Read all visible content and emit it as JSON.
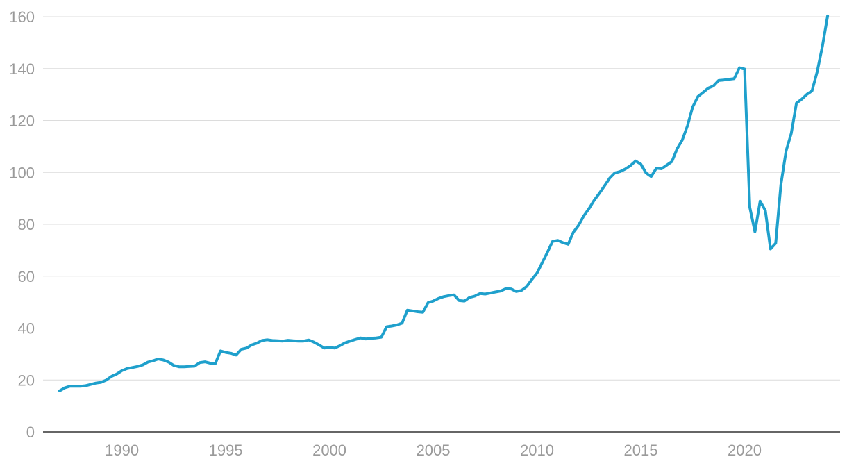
{
  "colors": {
    "line": "#1fa0cc",
    "grid": "#dcdcdc",
    "tick_text": "#9a9a9a",
    "axis": "#333333"
  },
  "chart_data": {
    "type": "line",
    "title": "",
    "xlabel": "",
    "ylabel": "",
    "xlim": [
      1986.2,
      2024.6
    ],
    "ylim": [
      0,
      160
    ],
    "grid": true,
    "legend": "none",
    "x_ticks": [
      1990,
      1995,
      2000,
      2005,
      2010,
      2015,
      2020
    ],
    "x_tick_labels": [
      "1990",
      "1995",
      "2000",
      "2005",
      "2010",
      "2015",
      "2020"
    ],
    "y_ticks": [
      0,
      20,
      40,
      60,
      80,
      100,
      120,
      140,
      160
    ],
    "y_tick_labels": [
      "0",
      "20",
      "40",
      "60",
      "80",
      "100",
      "120",
      "140",
      "160"
    ],
    "series": [
      {
        "x": [
          1987.0,
          1987.25,
          1987.5,
          1987.75,
          1988.0,
          1988.25,
          1988.5,
          1988.75,
          1989.0,
          1989.25,
          1989.5,
          1989.75,
          1990.0,
          1990.25,
          1990.5,
          1990.75,
          1991.0,
          1991.25,
          1991.5,
          1991.75,
          1992.0,
          1992.25,
          1992.5,
          1992.75,
          1993.0,
          1993.25,
          1993.5,
          1993.75,
          1994.0,
          1994.25,
          1994.5,
          1994.75,
          1995.0,
          1995.25,
          1995.5,
          1995.75,
          1996.0,
          1996.25,
          1996.5,
          1996.75,
          1997.0,
          1997.25,
          1997.5,
          1997.75,
          1998.0,
          1998.25,
          1998.5,
          1998.75,
          1999.0,
          1999.25,
          1999.5,
          1999.75,
          2000.0,
          2000.25,
          2000.5,
          2000.75,
          2001.0,
          2001.25,
          2001.5,
          2001.75,
          2002.0,
          2002.25,
          2002.5,
          2002.75,
          2003.0,
          2003.25,
          2003.5,
          2003.75,
          2004.0,
          2004.25,
          2004.5,
          2004.75,
          2005.0,
          2005.25,
          2005.5,
          2005.75,
          2006.0,
          2006.25,
          2006.5,
          2006.75,
          2007.0,
          2007.25,
          2007.5,
          2007.75,
          2008.0,
          2008.25,
          2008.5,
          2008.75,
          2009.0,
          2009.25,
          2009.5,
          2009.75,
          2010.0,
          2010.25,
          2010.5,
          2010.75,
          2011.0,
          2011.25,
          2011.5,
          2011.75,
          2012.0,
          2012.25,
          2012.5,
          2012.75,
          2013.0,
          2013.25,
          2013.5,
          2013.75,
          2014.0,
          2014.25,
          2014.5,
          2014.75,
          2015.0,
          2015.25,
          2015.5,
          2015.75,
          2016.0,
          2016.25,
          2016.5,
          2016.75,
          2017.0,
          2017.25,
          2017.5,
          2017.75,
          2018.0,
          2018.25,
          2018.5,
          2018.75,
          2019.0,
          2019.25,
          2019.5,
          2019.75,
          2020.0,
          2020.25,
          2020.5,
          2020.75,
          2021.0,
          2021.25,
          2021.5,
          2021.75,
          2022.0,
          2022.25,
          2022.5,
          2022.75,
          2023.0,
          2023.25,
          2023.5,
          2023.75,
          2024.0
        ],
        "values": [
          15.8,
          17.0,
          17.6,
          17.6,
          17.6,
          17.8,
          18.3,
          18.8,
          19.1,
          20.0,
          21.4,
          22.3,
          23.6,
          24.4,
          24.8,
          25.2,
          25.8,
          26.9,
          27.4,
          28.1,
          27.7,
          26.9,
          25.6,
          25.1,
          25.1,
          25.2,
          25.3,
          26.7,
          27.0,
          26.5,
          26.3,
          31.2,
          30.6,
          30.3,
          29.6,
          31.8,
          32.3,
          33.5,
          34.2,
          35.2,
          35.5,
          35.2,
          35.1,
          35.0,
          35.3,
          35.1,
          35.0,
          35.0,
          35.4,
          34.6,
          33.5,
          32.3,
          32.6,
          32.3,
          33.2,
          34.3,
          35.0,
          35.6,
          36.2,
          35.8,
          36.1,
          36.2,
          36.5,
          40.5,
          40.8,
          41.2,
          41.9,
          46.9,
          46.6,
          46.3,
          46.1,
          49.8,
          50.4,
          51.4,
          52.1,
          52.5,
          52.8,
          50.6,
          50.4,
          51.8,
          52.3,
          53.3,
          53.1,
          53.5,
          53.9,
          54.3,
          55.2,
          55.1,
          54.1,
          54.5,
          56.0,
          58.7,
          61.2,
          65.2,
          69.2,
          73.4,
          73.8,
          72.9,
          72.3,
          76.9,
          79.6,
          83.2,
          86.0,
          89.2,
          91.9,
          94.8,
          97.8,
          99.8,
          100.3,
          101.3,
          102.6,
          104.4,
          103.2,
          99.8,
          98.4,
          101.6,
          101.4,
          102.8,
          104.2,
          109.1,
          112.5,
          118.0,
          125.2,
          129.2,
          130.8,
          132.5,
          133.3,
          135.4,
          135.6,
          135.9,
          136.1,
          140.3,
          139.8,
          86.5,
          77.1,
          88.9,
          85.3,
          70.5,
          72.7,
          95.3,
          108.3,
          115.0,
          126.7,
          128.2,
          130.1,
          131.4,
          138.8,
          148.6,
          160.3
        ]
      }
    ]
  }
}
